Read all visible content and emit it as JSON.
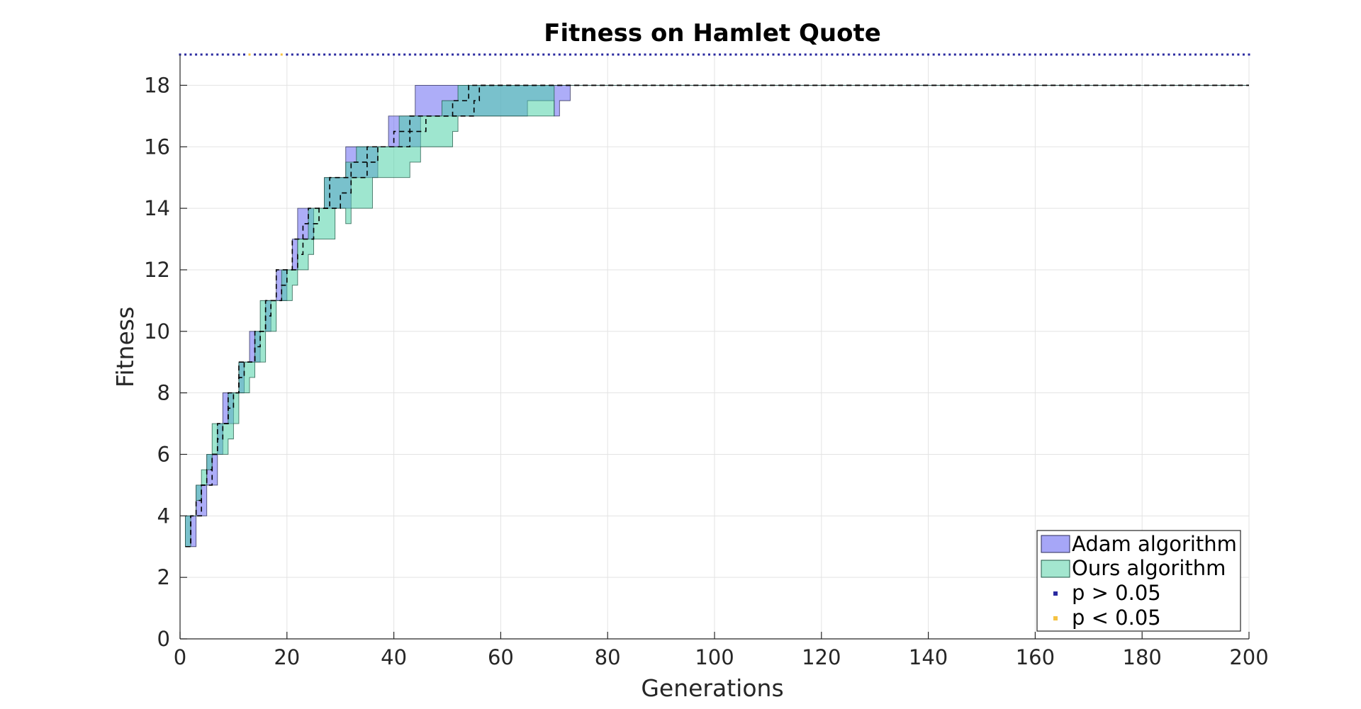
{
  "chart_data": {
    "type": "area",
    "title": "Fitness on Hamlet Quote",
    "xlabel": "Generations",
    "ylabel": "Fitness",
    "xlim": [
      0,
      200
    ],
    "ylim": [
      0,
      19
    ],
    "xticks": [
      0,
      20,
      40,
      60,
      80,
      100,
      120,
      140,
      160,
      180,
      200
    ],
    "yticks": [
      0,
      2,
      4,
      6,
      8,
      10,
      12,
      14,
      16,
      18
    ],
    "grid": true,
    "legend_position": "bottom-right",
    "series": [
      {
        "name": "Adam algorithm",
        "style": "shaded band with dashed median",
        "color": "#6a6af2",
        "x": [
          1,
          2,
          3,
          4,
          5,
          6,
          7,
          8,
          9,
          10,
          11,
          12,
          13,
          14,
          15,
          16,
          17,
          18,
          19,
          20,
          21,
          22,
          23,
          24,
          25,
          26,
          27,
          28,
          29,
          30,
          31,
          32,
          33,
          34,
          35,
          36,
          37,
          38,
          39,
          40,
          41,
          42,
          43,
          44,
          45,
          46,
          47,
          48,
          49,
          50,
          51,
          52,
          53,
          54,
          55,
          56,
          57,
          58,
          59,
          60,
          61,
          62,
          63,
          64,
          65,
          66,
          67,
          68,
          69,
          70,
          71,
          72,
          73,
          74,
          200
        ],
        "upper": [
          4,
          4,
          5,
          5,
          6,
          6,
          7,
          8,
          8,
          8,
          9,
          9,
          10,
          10,
          10,
          11,
          11,
          12,
          12,
          12,
          13,
          14,
          14,
          14,
          14,
          14,
          15,
          15,
          15,
          15,
          16,
          16,
          16,
          16,
          16,
          16,
          16,
          16,
          17,
          17,
          17,
          17,
          17,
          18,
          18,
          18,
          18,
          18,
          18,
          18,
          18,
          18,
          18,
          18,
          18,
          18,
          18,
          18,
          18,
          18,
          18,
          18,
          18,
          18,
          18,
          18,
          18,
          18,
          18,
          18,
          18,
          18,
          18,
          18,
          18
        ],
        "lower": [
          3,
          3,
          4,
          4,
          5,
          5,
          6,
          7,
          7,
          8,
          8,
          9,
          9,
          9,
          10,
          10,
          11,
          11,
          11,
          12,
          12,
          13,
          13,
          13,
          14,
          14,
          14,
          14,
          14,
          14,
          14,
          15,
          15,
          15,
          15,
          15,
          16,
          16,
          16,
          16,
          16,
          16,
          16,
          16,
          17,
          17,
          17,
          17,
          17,
          17,
          17,
          17,
          17,
          17,
          17,
          17,
          17,
          17,
          17,
          17,
          17,
          17,
          17,
          17,
          17.5,
          17.5,
          17.5,
          17.5,
          17.5,
          17,
          17.5,
          17.5,
          18,
          18,
          18
        ],
        "median": [
          3,
          4,
          4,
          5,
          5,
          6,
          7,
          7,
          8,
          8,
          9,
          9,
          9,
          10,
          10,
          11,
          11,
          12,
          12,
          12,
          13,
          13,
          13.5,
          14,
          14,
          14,
          14,
          15,
          15,
          15,
          15,
          15.5,
          15.5,
          15.5,
          16,
          16,
          16,
          16,
          16,
          16.5,
          16.5,
          16.5,
          17,
          17,
          17,
          17,
          17,
          17,
          17,
          17,
          17,
          17,
          17,
          17,
          17.5,
          18,
          18,
          18,
          18,
          18,
          18,
          18,
          18,
          18,
          18,
          18,
          18,
          18,
          18,
          18,
          18,
          18,
          18,
          18,
          18
        ]
      },
      {
        "name": "Ours algorithm",
        "style": "shaded band with dashed median",
        "color": "#4fd1a7",
        "x": [
          1,
          2,
          3,
          4,
          5,
          6,
          7,
          8,
          9,
          10,
          11,
          12,
          13,
          14,
          15,
          16,
          17,
          18,
          19,
          20,
          21,
          22,
          23,
          24,
          25,
          26,
          27,
          28,
          29,
          30,
          31,
          32,
          33,
          34,
          35,
          36,
          37,
          38,
          39,
          40,
          41,
          42,
          43,
          44,
          45,
          46,
          47,
          48,
          49,
          50,
          51,
          52,
          53,
          54,
          55,
          56,
          57,
          58,
          59,
          60,
          61,
          62,
          63,
          64,
          65,
          66,
          67,
          68,
          69,
          70,
          71,
          72,
          73,
          74,
          200
        ],
        "upper": [
          4,
          4,
          5,
          5.5,
          6,
          7,
          7,
          7,
          8,
          8,
          9,
          9,
          9,
          10,
          11,
          11,
          11,
          11,
          12,
          12,
          12,
          13,
          13,
          14,
          14,
          14,
          15,
          15,
          15,
          15,
          15.5,
          15.5,
          16,
          16,
          16,
          16,
          16,
          16,
          16,
          16,
          17,
          17,
          17,
          17,
          17,
          17,
          17,
          17,
          17.5,
          17.5,
          17.5,
          18,
          18,
          18,
          18,
          18,
          18,
          18,
          18,
          18,
          18,
          18,
          18,
          18,
          18,
          18,
          18,
          18,
          18,
          18,
          18,
          18,
          18,
          18,
          18
        ],
        "lower": [
          3,
          4,
          4.5,
          5,
          5.5,
          6,
          6,
          6,
          6.5,
          7,
          8,
          8,
          8.5,
          9,
          9,
          10,
          10,
          11,
          11,
          11,
          11.5,
          12,
          12,
          12.5,
          13,
          13,
          13,
          13,
          14,
          14,
          13.5,
          14,
          14,
          14,
          14,
          15,
          15,
          15,
          15,
          15,
          15,
          15,
          15.5,
          15.5,
          16,
          16,
          16,
          16,
          16,
          16,
          16.5,
          17,
          17,
          17,
          17,
          17,
          17,
          17,
          17,
          17,
          17,
          17,
          17,
          17,
          17,
          17,
          17,
          17,
          17,
          18,
          18,
          18,
          18,
          18,
          18
        ],
        "median": [
          3,
          4,
          4.5,
          5,
          5.5,
          6,
          6.5,
          7,
          7.5,
          8,
          8.5,
          9,
          9,
          9.5,
          10,
          10.5,
          11,
          11,
          11.5,
          12,
          12,
          12.5,
          13,
          13,
          13.5,
          14,
          14,
          14,
          14,
          14.5,
          14.5,
          15,
          15,
          15,
          15.5,
          15.5,
          16,
          16,
          16,
          16,
          16,
          16,
          16.5,
          16.5,
          16.5,
          17,
          17,
          17,
          17,
          17,
          17.5,
          17.5,
          17.5,
          18,
          18,
          18,
          18,
          18,
          18,
          18,
          18,
          18,
          18,
          18,
          18,
          18,
          18,
          18,
          18,
          18,
          18,
          18,
          18,
          18,
          18
        ]
      },
      {
        "name": "p > 0.05",
        "style": "markers",
        "color": "#2a2aa0",
        "y_position": 19
      },
      {
        "name": "p < 0.05",
        "style": "markers",
        "color": "#f5c242",
        "y_position": 19,
        "x_marks": [
          13,
          19
        ]
      }
    ]
  }
}
